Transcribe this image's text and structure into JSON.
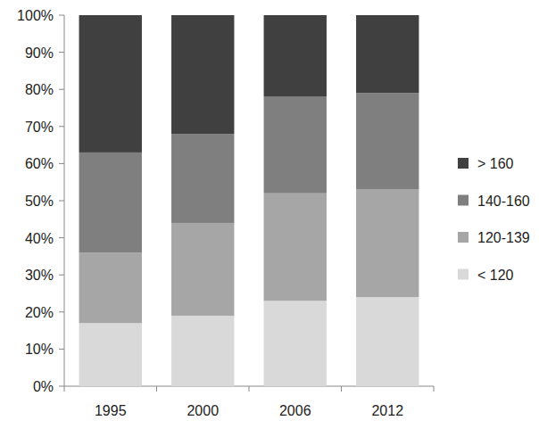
{
  "chart_data": {
    "type": "bar",
    "stacked": true,
    "grid": false,
    "legend": "right",
    "categories": [
      "1995",
      "2000",
      "2006",
      "2012"
    ],
    "series": [
      {
        "name": "< 120",
        "color": "#d9d9d9",
        "values": [
          17,
          19,
          23,
          24
        ]
      },
      {
        "name": "120-139",
        "color": "#a6a6a6",
        "values": [
          19,
          25,
          29,
          29
        ]
      },
      {
        "name": "140-160",
        "color": "#7f7f7f",
        "values": [
          27,
          24,
          26,
          26
        ]
      },
      {
        "name": "> 160",
        "color": "#404040",
        "values": [
          37,
          32,
          22,
          21
        ]
      }
    ],
    "ylim": [
      0,
      100
    ],
    "yticks": [
      {
        "value": 0,
        "label": "0%"
      },
      {
        "value": 10,
        "label": "10%"
      },
      {
        "value": 20,
        "label": "20%"
      },
      {
        "value": 30,
        "label": "30%"
      },
      {
        "value": 40,
        "label": "40%"
      },
      {
        "value": 50,
        "label": "50%"
      },
      {
        "value": 60,
        "label": "60%"
      },
      {
        "value": 70,
        "label": "70%"
      },
      {
        "value": 80,
        "label": "80%"
      },
      {
        "value": 90,
        "label": "90%"
      },
      {
        "value": 100,
        "label": "100%"
      }
    ]
  }
}
